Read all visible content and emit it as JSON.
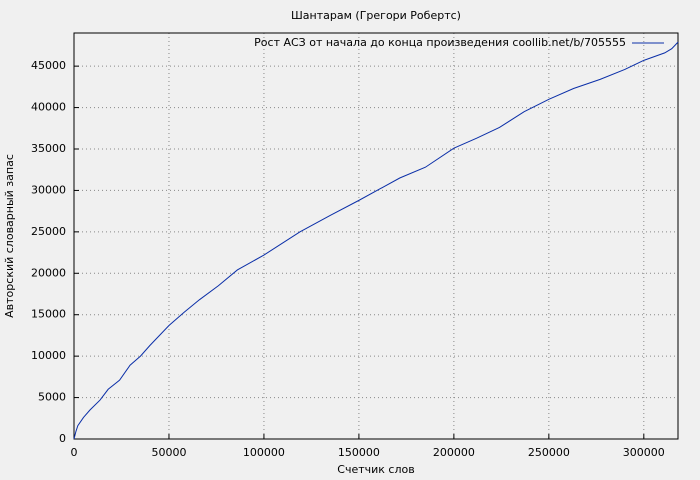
{
  "chart_data": {
    "type": "line",
    "title": "Шантарам (Грегори Робертс)",
    "x_label": "Счетчик слов",
    "y_label": "Авторский словарный запас",
    "x": [
      0,
      1000,
      2000,
      5000,
      8400,
      13700,
      18000,
      24000,
      29500,
      35000,
      40000,
      50000,
      58000,
      66000,
      76000,
      86000,
      100000,
      119000,
      135000,
      150000,
      171500,
      185000,
      200000,
      212000,
      224000,
      237000,
      250000,
      263000,
      277000,
      290000,
      300000,
      311000,
      314700,
      318000
    ],
    "series": [
      {
        "name": "Рост АСЗ от начала до конца произведения coollib.net/b/705555",
        "color": "#0b2fa8",
        "values": [
          0,
          900,
          1600,
          2600,
          3500,
          4700,
          6000,
          7100,
          8900,
          10000,
          11300,
          13700,
          15300,
          16800,
          18500,
          20400,
          22200,
          25000,
          27000,
          28800,
          31500,
          32800,
          35100,
          36300,
          37600,
          39500,
          41000,
          42300,
          43400,
          44600,
          45700,
          46600,
          47100,
          47900
        ]
      }
    ],
    "xlim": [
      0,
      318000
    ],
    "ylim": [
      0,
      49000
    ],
    "xticks": [
      0,
      50000,
      100000,
      150000,
      200000,
      250000,
      300000
    ],
    "yticks": [
      0,
      5000,
      10000,
      15000,
      20000,
      25000,
      30000,
      35000,
      40000,
      45000
    ],
    "grid": true,
    "legend": "top-right"
  }
}
